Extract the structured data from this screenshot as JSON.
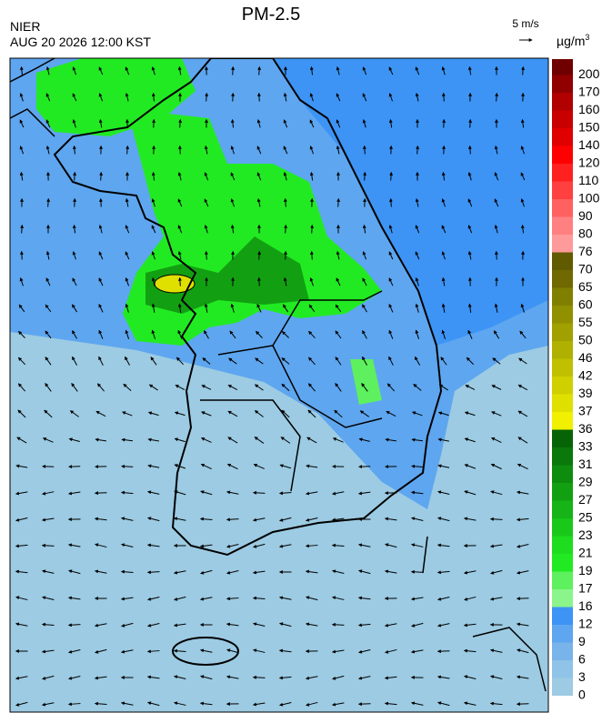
{
  "title": "PM-2.5",
  "agency": "NIER",
  "timestamp": "AUG 20 2026 12:00 KST",
  "wind_reference": "5 m/s",
  "unit": "µg/m",
  "unit_superscript": "3",
  "colorbar": {
    "ticks": [
      0,
      3,
      6,
      9,
      12,
      16,
      17,
      19,
      21,
      23,
      25,
      27,
      29,
      31,
      33,
      36,
      37,
      39,
      42,
      46,
      50,
      55,
      60,
      65,
      70,
      76,
      80,
      90,
      100,
      110,
      120,
      140,
      150,
      160,
      170,
      200
    ],
    "colors": [
      "#9ccbe3",
      "#8fc3e8",
      "#78b4ea",
      "#5ea6ef",
      "#3d94f5",
      "#8bf58b",
      "#5ef05e",
      "#22ea22",
      "#1edc1e",
      "#19c819",
      "#16b416",
      "#12a012",
      "#0e8c0e",
      "#0a780a",
      "#066406",
      "#f0f000",
      "#e0e000",
      "#d0d000",
      "#c0c000",
      "#b0b000",
      "#a0a000",
      "#909000",
      "#808000",
      "#706800",
      "#605a00",
      "#ff9a9a",
      "#ff8080",
      "#ff6060",
      "#ff4040",
      "#ff2020",
      "#ff0000",
      "#e00000",
      "#c80000",
      "#b00000",
      "#900000",
      "#700000"
    ]
  }
}
